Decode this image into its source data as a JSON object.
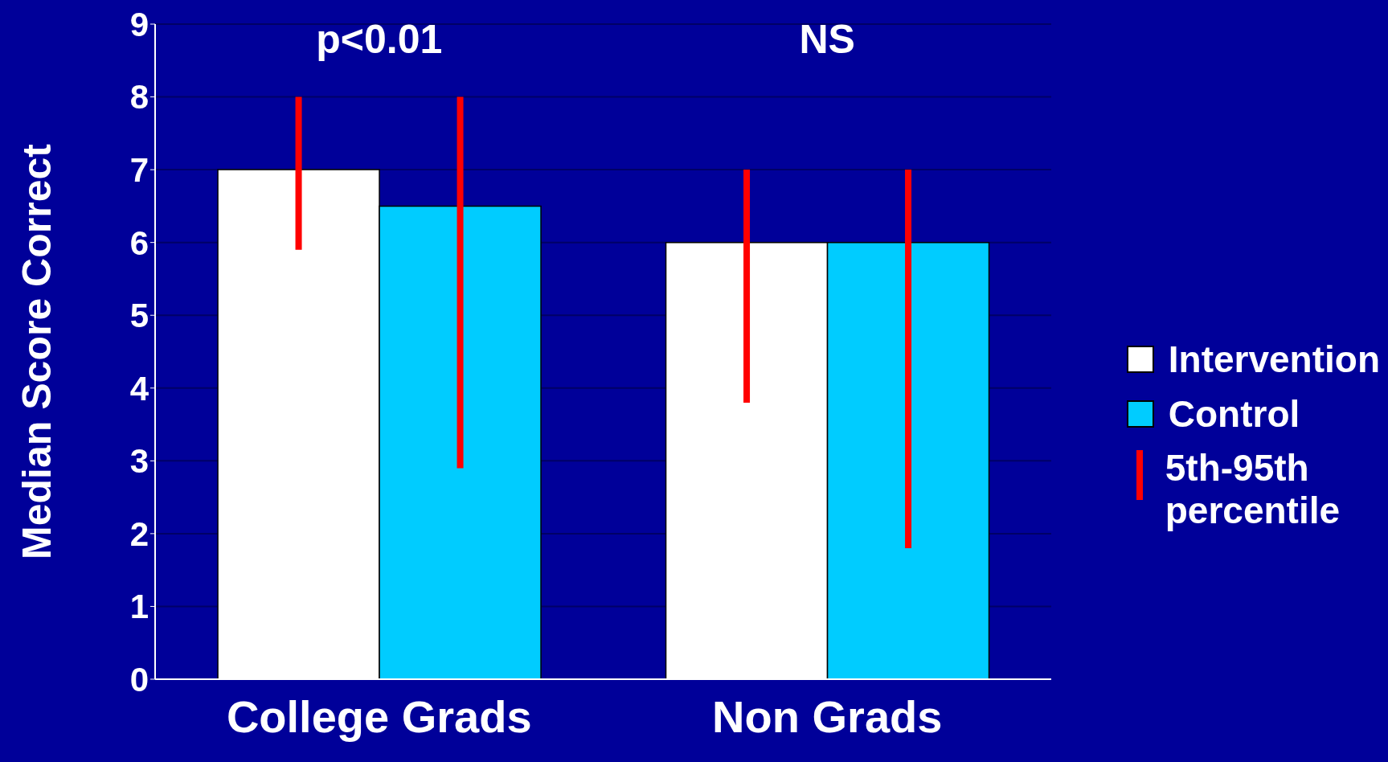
{
  "chart_data": {
    "type": "bar",
    "categories": [
      "College Grads",
      "Non Grads"
    ],
    "ylabel": "Median Score Correct",
    "ylim": [
      0,
      9
    ],
    "yticks": [
      0,
      1,
      2,
      3,
      4,
      5,
      6,
      7,
      8,
      9
    ],
    "grid": "y",
    "legend": "right",
    "series": [
      {
        "name": "Intervention",
        "color": "#ffffff",
        "values": [
          7,
          6
        ],
        "errors": [
          [
            5.9,
            8
          ],
          [
            3.8,
            7
          ]
        ]
      },
      {
        "name": "Control",
        "color": "#00ccff",
        "values": [
          6.5,
          6
        ],
        "errors": [
          [
            2.9,
            8
          ],
          [
            1.8,
            7
          ]
        ]
      }
    ],
    "annotations": [
      "p<0.01",
      "NS",
      "5th-95th percentile"
    ]
  }
}
